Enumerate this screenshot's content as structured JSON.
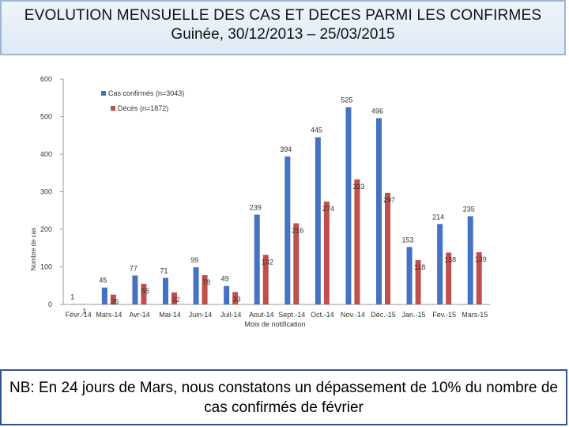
{
  "header": {
    "title": "EVOLUTION MENSUELLE DES CAS ET DECES PARMI LES CONFIRMES",
    "subtitle": "Guinée, 30/12/2013 – 25/03/2015"
  },
  "footnote": "NB: En 24 jours de Mars, nous constatons un dépassement de 10% du nombre de cas confirmés de février",
  "colors": {
    "cases": "#4472c4",
    "deaths": "#c0504d"
  },
  "chart_data": {
    "type": "bar",
    "title": "",
    "xlabel": "Mois de notification",
    "ylabel": "Nombre de cas",
    "ylim": [
      0,
      600
    ],
    "yticks": [
      0,
      100,
      200,
      300,
      400,
      500,
      600
    ],
    "legend_position": "top-left",
    "categories": [
      "Févr.-14",
      "Mars-14",
      "Avr-14",
      "Mai-14",
      "Juin-14",
      "Juil-14",
      "Aout-14",
      "Sept.-14",
      "Oct.-14",
      "Nov.-14",
      "Déc.-15",
      "Jan.-15",
      "Fev.-15",
      "Mars-15"
    ],
    "series": [
      {
        "name": "Cas confirmés (n=3043)",
        "values": [
          1,
          45,
          77,
          71,
          99,
          49,
          239,
          394,
          445,
          525,
          496,
          153,
          214,
          235
        ]
      },
      {
        "name": "Décès (n=1872)",
        "values": [
          1,
          26,
          55,
          32,
          78,
          33,
          132,
          216,
          274,
          333,
          297,
          118,
          138,
          139
        ]
      }
    ]
  }
}
